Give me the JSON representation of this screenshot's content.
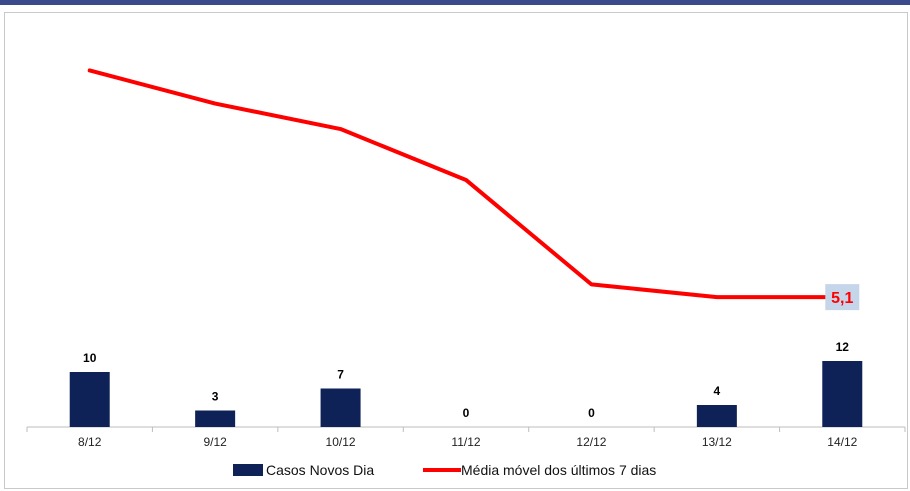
{
  "chart_data": {
    "type": "bar+line",
    "categories": [
      "8/12",
      "9/12",
      "10/12",
      "11/12",
      "12/12",
      "13/12",
      "14/12"
    ],
    "series": [
      {
        "name": "Casos Novos Dia",
        "type": "bar",
        "color": "#0e2257",
        "values": [
          10,
          3,
          7,
          0,
          0,
          4,
          12
        ],
        "labels": [
          "10",
          "3",
          "7",
          "0",
          "0",
          "4",
          "12"
        ]
      },
      {
        "name": "Média móvel dos últimos 7 dias",
        "type": "line",
        "color": "#ff0000",
        "values": [
          14,
          12.7,
          11.7,
          9.7,
          5.6,
          5.1,
          5.1
        ],
        "last_label": "5,1"
      }
    ],
    "ylim": [
      0,
      15
    ],
    "grid": false,
    "legend": "bottom"
  },
  "colors": {
    "bar": "#0e2257",
    "line": "#ff0000",
    "accent_bar": "#3a4a8c",
    "label_box": "#c5d5ea"
  }
}
